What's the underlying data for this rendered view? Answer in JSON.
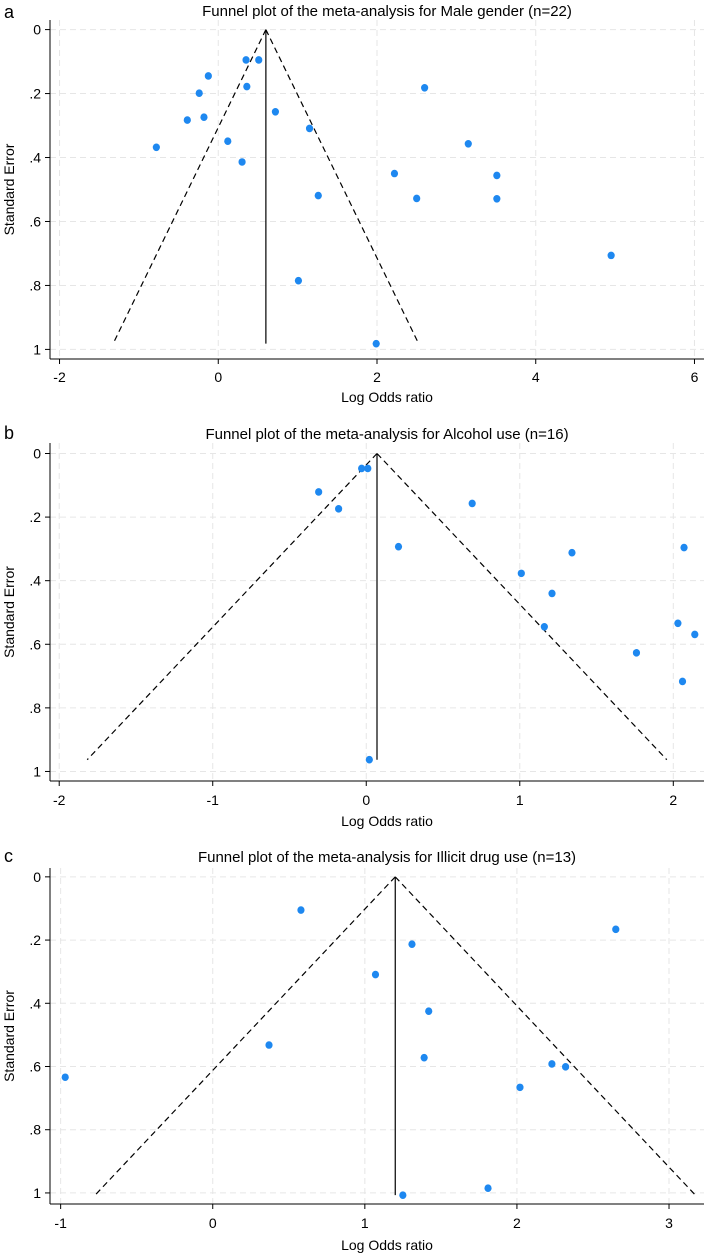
{
  "chart_data": [
    {
      "type": "scatter",
      "panel_label": "a",
      "title": "Funnel plot of the meta-analysis for Male gender (n=22)",
      "xlabel": "Log Odds ratio",
      "ylabel": "Standard Error",
      "xlim": [
        -2.12,
        6.12
      ],
      "ylim": [
        -0.03,
        1.03
      ],
      "y_reversed": true,
      "grid": true,
      "xticks": [
        {
          "v": -2,
          "label": "-2"
        },
        {
          "v": 0,
          "label": "0"
        },
        {
          "v": 2,
          "label": "2"
        },
        {
          "v": 4,
          "label": "4"
        },
        {
          "v": 6,
          "label": "6"
        }
      ],
      "yticks": [
        {
          "v": 0,
          "label": "0"
        },
        {
          "v": 0.2,
          "label": ".2"
        },
        {
          "v": 0.4,
          "label": ".4"
        },
        {
          "v": 0.6,
          "label": ".6"
        },
        {
          "v": 0.8,
          "label": ".8"
        },
        {
          "v": 1,
          "label": "1"
        }
      ],
      "pooled_estimate": 0.6,
      "funnel_se_max": 0.982,
      "point_color": "#1e88f0",
      "points": [
        {
          "x": 0.35,
          "y": 0.095
        },
        {
          "x": 0.51,
          "y": 0.095
        },
        {
          "x": -0.125,
          "y": 0.145
        },
        {
          "x": -0.24,
          "y": 0.199
        },
        {
          "x": 0.36,
          "y": 0.178
        },
        {
          "x": 2.6,
          "y": 0.182
        },
        {
          "x": -0.39,
          "y": 0.283
        },
        {
          "x": -0.18,
          "y": 0.274
        },
        {
          "x": 0.72,
          "y": 0.257
        },
        {
          "x": 1.15,
          "y": 0.309
        },
        {
          "x": -0.78,
          "y": 0.368
        },
        {
          "x": 0.12,
          "y": 0.349
        },
        {
          "x": 0.3,
          "y": 0.414
        },
        {
          "x": 3.15,
          "y": 0.357
        },
        {
          "x": 2.22,
          "y": 0.45
        },
        {
          "x": 3.51,
          "y": 0.456
        },
        {
          "x": 1.26,
          "y": 0.519
        },
        {
          "x": 2.5,
          "y": 0.528
        },
        {
          "x": 3.51,
          "y": 0.529
        },
        {
          "x": 4.95,
          "y": 0.706
        },
        {
          "x": 1.01,
          "y": 0.785
        },
        {
          "x": 1.99,
          "y": 0.982
        }
      ]
    },
    {
      "type": "scatter",
      "panel_label": "b",
      "title": "Funnel plot of the meta-analysis for Alcohol use (n=16)",
      "xlabel": "Log Odds ratio",
      "ylabel": "Standard Error",
      "xlim": [
        -2.06,
        2.2
      ],
      "ylim": [
        -0.033,
        1.03
      ],
      "y_reversed": true,
      "grid": true,
      "xticks": [
        {
          "v": -2,
          "label": "-2"
        },
        {
          "v": -1,
          "label": "-1"
        },
        {
          "v": 0,
          "label": "0"
        },
        {
          "v": 1,
          "label": "1"
        },
        {
          "v": 2,
          "label": "2"
        }
      ],
      "yticks": [
        {
          "v": 0,
          "label": "0"
        },
        {
          "v": 0.2,
          "label": ".2"
        },
        {
          "v": 0.4,
          "label": ".4"
        },
        {
          "v": 0.6,
          "label": ".6"
        },
        {
          "v": 0.8,
          "label": ".8"
        },
        {
          "v": 1,
          "label": "1"
        }
      ],
      "pooled_estimate": 0.07,
      "funnel_se_max": 0.963,
      "point_color": "#1e88f0",
      "points": [
        {
          "x": -0.03,
          "y": 0.047
        },
        {
          "x": 0.01,
          "y": 0.047
        },
        {
          "x": -0.31,
          "y": 0.121
        },
        {
          "x": -0.18,
          "y": 0.174
        },
        {
          "x": 0.69,
          "y": 0.157
        },
        {
          "x": 0.21,
          "y": 0.293
        },
        {
          "x": 2.07,
          "y": 0.296
        },
        {
          "x": 1.34,
          "y": 0.312
        },
        {
          "x": 1.01,
          "y": 0.377
        },
        {
          "x": 1.21,
          "y": 0.44
        },
        {
          "x": 1.16,
          "y": 0.545
        },
        {
          "x": 2.03,
          "y": 0.534
        },
        {
          "x": 2.14,
          "y": 0.569
        },
        {
          "x": 1.76,
          "y": 0.627
        },
        {
          "x": 2.06,
          "y": 0.717
        },
        {
          "x": 0.02,
          "y": 0.963
        }
      ]
    },
    {
      "type": "scatter",
      "panel_label": "c",
      "title": "Funnel plot of the meta-analysis for Illicit drug use (n=13)",
      "xlabel": "Log Odds ratio",
      "ylabel": "Standard Error",
      "xlim": [
        -1.07,
        3.23
      ],
      "ylim": [
        -0.028,
        1.035
      ],
      "y_reversed": true,
      "grid": true,
      "xticks": [
        {
          "v": -1,
          "label": "-1"
        },
        {
          "v": 0,
          "label": "0"
        },
        {
          "v": 1,
          "label": "1"
        },
        {
          "v": 2,
          "label": "2"
        },
        {
          "v": 3,
          "label": "3"
        }
      ],
      "yticks": [
        {
          "v": 0,
          "label": "0"
        },
        {
          "v": 0.2,
          "label": ".2"
        },
        {
          "v": 0.4,
          "label": ".4"
        },
        {
          "v": 0.6,
          "label": ".6"
        },
        {
          "v": 0.8,
          "label": ".8"
        },
        {
          "v": 1,
          "label": "1"
        }
      ],
      "pooled_estimate": 1.2,
      "funnel_se_max": 1.007,
      "point_color": "#1e88f0",
      "points": [
        {
          "x": 0.58,
          "y": 0.105
        },
        {
          "x": 2.65,
          "y": 0.166
        },
        {
          "x": 1.31,
          "y": 0.213
        },
        {
          "x": 1.07,
          "y": 0.309
        },
        {
          "x": 1.42,
          "y": 0.425
        },
        {
          "x": 0.37,
          "y": 0.532
        },
        {
          "x": 1.39,
          "y": 0.572
        },
        {
          "x": 2.23,
          "y": 0.592
        },
        {
          "x": 2.32,
          "y": 0.601
        },
        {
          "x": -0.97,
          "y": 0.634
        },
        {
          "x": 2.02,
          "y": 0.666
        },
        {
          "x": 1.81,
          "y": 0.985
        },
        {
          "x": 1.25,
          "y": 1.007
        }
      ]
    }
  ]
}
